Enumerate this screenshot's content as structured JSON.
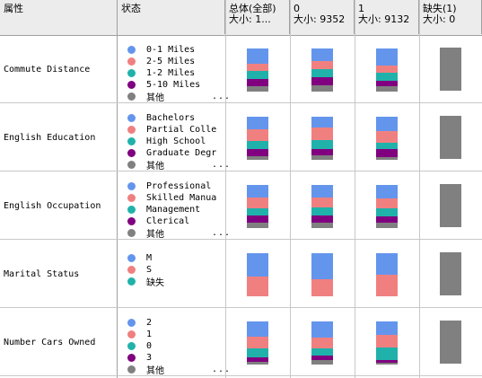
{
  "header": {
    "attr": "属性",
    "state": "状态",
    "total_l1": "总体(全部)",
    "total_l2": "大小: 1...",
    "c0_l1": "0",
    "c0_l2": "大小: 9352",
    "c1_l1": "1",
    "c1_l2": "大小: 9132",
    "cm_l1": "缺失(1)",
    "cm_l2": "大小: 0"
  },
  "colors": {
    "blue": "#6495ed",
    "salmon": "#f08080",
    "teal": "#20b2aa",
    "purple": "#800080",
    "gray": "#808080"
  },
  "rows": [
    {
      "name": "Commute Distance",
      "states": [
        "0-1 Miles",
        "2-5 Miles",
        "1-2 Miles",
        "5-10 Miles",
        "其他"
      ],
      "dot_colors": [
        "blue",
        "salmon",
        "teal",
        "purple",
        "gray"
      ],
      "more": "...",
      "dist_total": [
        0.35,
        0.18,
        0.17,
        0.17,
        0.13
      ],
      "dist_0": [
        0.3,
        0.18,
        0.18,
        0.19,
        0.15
      ],
      "dist_1": [
        0.4,
        0.17,
        0.17,
        0.14,
        0.12
      ]
    },
    {
      "name": "English Education",
      "states": [
        "Bachelors",
        "Partial Colle",
        "High School",
        "Graduate Degr",
        "其他"
      ],
      "dot_colors": [
        "blue",
        "salmon",
        "teal",
        "purple",
        "gray"
      ],
      "more": "...",
      "dist_total": [
        0.3,
        0.27,
        0.18,
        0.17,
        0.08
      ],
      "dist_0": [
        0.26,
        0.28,
        0.2,
        0.16,
        0.1
      ],
      "dist_1": [
        0.34,
        0.26,
        0.16,
        0.18,
        0.06
      ]
    },
    {
      "name": "English Occupation",
      "states": [
        "Professional",
        "Skilled Manua",
        "Management",
        "Clerical",
        "其他"
      ],
      "dot_colors": [
        "blue",
        "salmon",
        "teal",
        "purple",
        "gray"
      ],
      "more": "...",
      "dist_total": [
        0.3,
        0.24,
        0.17,
        0.16,
        0.13
      ],
      "dist_0": [
        0.29,
        0.24,
        0.17,
        0.17,
        0.13
      ],
      "dist_1": [
        0.31,
        0.24,
        0.17,
        0.15,
        0.13
      ]
    },
    {
      "name": "Marital Status",
      "states": [
        "M",
        "S",
        "缺失"
      ],
      "dot_colors": [
        "blue",
        "salmon",
        "teal"
      ],
      "more": "",
      "dist_total": [
        0.55,
        0.45
      ],
      "dist_0": [
        0.6,
        0.4
      ],
      "dist_1": [
        0.5,
        0.5
      ]
    },
    {
      "name": "Number Cars Owned",
      "states": [
        "2",
        "1",
        "0",
        "3",
        "其他"
      ],
      "dot_colors": [
        "blue",
        "salmon",
        "teal",
        "purple",
        "gray"
      ],
      "more": "...",
      "dist_total": [
        0.35,
        0.27,
        0.22,
        0.09,
        0.07
      ],
      "dist_0": [
        0.38,
        0.24,
        0.17,
        0.11,
        0.1
      ],
      "dist_1": [
        0.31,
        0.3,
        0.28,
        0.07,
        0.04
      ]
    }
  ]
}
